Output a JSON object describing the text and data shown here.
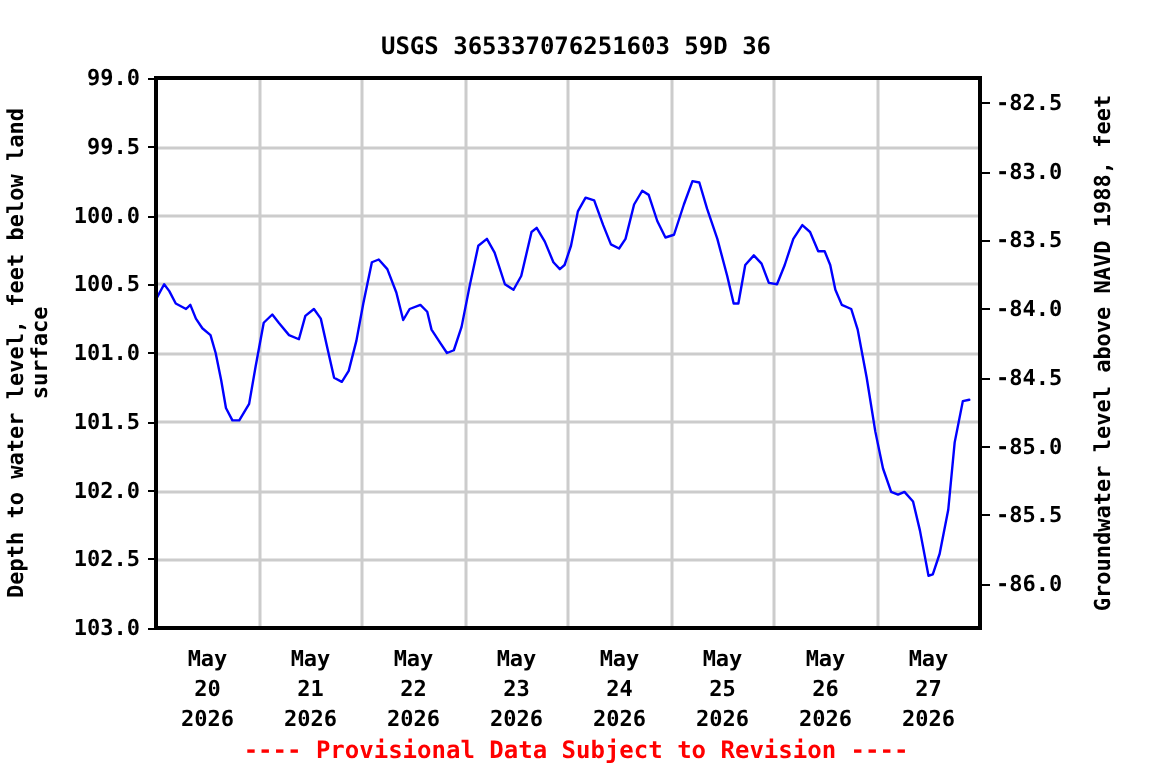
{
  "chart_data": {
    "type": "line",
    "title": "USGS 365337076251603 59D 36",
    "ylabel": "Depth to water level, feet below land\nsurface",
    "y2label": "Groundwater level above NAVD 1988, feet",
    "annotations": [
      "---- Provisional Data Subject to Revision ----"
    ],
    "xlim": [
      "2026-05-20T00:00",
      "2026-05-28T00:00"
    ],
    "xticks": [
      {
        "value": "2026-05-20T00:00",
        "label": null
      },
      {
        "value": "2026-05-20T12:00",
        "label": "May\n20\n2026"
      },
      {
        "value": "2026-05-21T00:00",
        "label": null
      },
      {
        "value": "2026-05-21T12:00",
        "label": "May\n21\n2026"
      },
      {
        "value": "2026-05-22T00:00",
        "label": null
      },
      {
        "value": "2026-05-22T12:00",
        "label": "May\n22\n2026"
      },
      {
        "value": "2026-05-23T00:00",
        "label": null
      },
      {
        "value": "2026-05-23T12:00",
        "label": "May\n23\n2026"
      },
      {
        "value": "2026-05-24T00:00",
        "label": null
      },
      {
        "value": "2026-05-24T12:00",
        "label": "May\n24\n2026"
      },
      {
        "value": "2026-05-25T00:00",
        "label": null
      },
      {
        "value": "2026-05-25T12:00",
        "label": "May\n25\n2026"
      },
      {
        "value": "2026-05-26T00:00",
        "label": null
      },
      {
        "value": "2026-05-26T12:00",
        "label": "May\n26\n2026"
      },
      {
        "value": "2026-05-27T00:00",
        "label": null
      },
      {
        "value": "2026-05-27T12:00",
        "label": "May\n27\n2026"
      },
      {
        "value": "2026-05-28T00:00",
        "label": null
      }
    ],
    "ylim": [
      103,
      99
    ],
    "yticks": [
      {
        "value": 99,
        "label": "99.0"
      },
      {
        "value": 99.5,
        "label": "99.5"
      },
      {
        "value": 100,
        "label": "100.0"
      },
      {
        "value": 100.5,
        "label": "100.5"
      },
      {
        "value": 101,
        "label": "101.0"
      },
      {
        "value": 101.5,
        "label": "101.5"
      },
      {
        "value": 102,
        "label": "102.0"
      },
      {
        "value": 102.5,
        "label": "102.5"
      },
      {
        "value": 103,
        "label": "103.0"
      }
    ],
    "y2lim": [
      -86.32,
      -82.32
    ],
    "y2ticks": [
      {
        "value": -82.5,
        "label": "-82.5"
      },
      {
        "value": -83,
        "label": "-83.0"
      },
      {
        "value": -83.5,
        "label": "-83.5"
      },
      {
        "value": -84,
        "label": "-84.0"
      },
      {
        "value": -84.5,
        "label": "-84.5"
      },
      {
        "value": -85,
        "label": "-85.0"
      },
      {
        "value": -85.5,
        "label": "-85.5"
      },
      {
        "value": -86,
        "label": "-86.0"
      }
    ],
    "grid": true,
    "marker": "none",
    "line_style": "solid",
    "series": [
      {
        "color": "#0000ff",
        "x": [
          "2026-05-20T00:00",
          "2026-05-20T01:54",
          "2026-05-20T03:06",
          "2026-05-20T04:36",
          "2026-05-20T07:00",
          "2026-05-20T08:00",
          "2026-05-20T09:18",
          "2026-05-20T10:48",
          "2026-05-20T12:42",
          "2026-05-20T13:54",
          "2026-05-20T15:12",
          "2026-05-20T16:18",
          "2026-05-20T17:48",
          "2026-05-20T19:24",
          "2026-05-20T21:42",
          "2026-05-20T23:12",
          "2026-05-21T01:06",
          "2026-05-21T03:06",
          "2026-05-21T04:36",
          "2026-05-21T07:00",
          "2026-05-21T09:18",
          "2026-05-21T10:48",
          "2026-05-21T12:48",
          "2026-05-21T14:24",
          "2026-05-21T15:54",
          "2026-05-21T17:30",
          "2026-05-21T19:18",
          "2026-05-21T20:54",
          "2026-05-21T22:42",
          "2026-05-22T00:18",
          "2026-05-22T02:18",
          "2026-05-22T03:54",
          "2026-05-22T05:54",
          "2026-05-22T08:00",
          "2026-05-22T09:36",
          "2026-05-22T11:06",
          "2026-05-22T13:36",
          "2026-05-22T15:12",
          "2026-05-22T16:12",
          "2026-05-22T18:18",
          "2026-05-22T19:48",
          "2026-05-22T21:24",
          "2026-05-22T23:12",
          "2026-05-23T01:06",
          "2026-05-23T03:06",
          "2026-05-23T05:06",
          "2026-05-23T06:54",
          "2026-05-23T09:18",
          "2026-05-23T11:18",
          "2026-05-23T13:06",
          "2026-05-23T15:30",
          "2026-05-23T16:42",
          "2026-05-23T18:36",
          "2026-05-23T20:36",
          "2026-05-23T22:06",
          "2026-05-23T23:12",
          "2026-05-24T00:42",
          "2026-05-24T02:18",
          "2026-05-24T04:06",
          "2026-05-24T06:06",
          "2026-05-24T08:12",
          "2026-05-24T10:00",
          "2026-05-24T11:54",
          "2026-05-24T13:24",
          "2026-05-24T15:24",
          "2026-05-24T17:18",
          "2026-05-24T18:48",
          "2026-05-24T20:48",
          "2026-05-24T22:42",
          "2026-05-25T00:42",
          "2026-05-25T03:00",
          "2026-05-25T05:00",
          "2026-05-25T06:36",
          "2026-05-25T08:24",
          "2026-05-25T10:48",
          "2026-05-25T13:06",
          "2026-05-25T14:36",
          "2026-05-25T15:42",
          "2026-05-25T17:18",
          "2026-05-25T19:18",
          "2026-05-25T21:06",
          "2026-05-25T22:48",
          "2026-05-26T00:42",
          "2026-05-26T02:30",
          "2026-05-26T04:30",
          "2026-05-26T06:36",
          "2026-05-26T08:24",
          "2026-05-26T10:18",
          "2026-05-26T11:48",
          "2026-05-26T13:06",
          "2026-05-26T14:18",
          "2026-05-26T15:48",
          "2026-05-26T18:00",
          "2026-05-26T19:30",
          "2026-05-26T21:36",
          "2026-05-26T23:36",
          "2026-05-27T01:24",
          "2026-05-27T03:18",
          "2026-05-27T04:54",
          "2026-05-27T06:24",
          "2026-05-27T08:24",
          "2026-05-27T10:00",
          "2026-05-27T12:00",
          "2026-05-27T13:00",
          "2026-05-27T14:36",
          "2026-05-27T16:36",
          "2026-05-27T18:06",
          "2026-05-27T20:00",
          "2026-05-27T21:30"
        ],
        "values": [
          100.61,
          100.5,
          100.55,
          100.64,
          100.68,
          100.65,
          100.75,
          100.82,
          100.87,
          101.0,
          101.2,
          101.4,
          101.49,
          101.49,
          101.37,
          101.1,
          100.78,
          100.72,
          100.78,
          100.87,
          100.9,
          100.73,
          100.68,
          100.75,
          100.96,
          101.18,
          101.21,
          101.13,
          100.91,
          100.64,
          100.34,
          100.32,
          100.39,
          100.56,
          100.76,
          100.68,
          100.65,
          100.7,
          100.83,
          100.93,
          101.0,
          100.98,
          100.81,
          100.51,
          100.22,
          100.17,
          100.27,
          100.5,
          100.54,
          100.44,
          100.12,
          100.09,
          100.19,
          100.34,
          100.39,
          100.36,
          100.22,
          99.97,
          99.87,
          99.89,
          100.07,
          100.21,
          100.24,
          100.17,
          99.92,
          99.82,
          99.85,
          100.04,
          100.16,
          100.14,
          99.92,
          99.75,
          99.76,
          99.95,
          100.17,
          100.44,
          100.64,
          100.64,
          100.36,
          100.29,
          100.35,
          100.49,
          100.5,
          100.36,
          100.17,
          100.07,
          100.12,
          100.26,
          100.26,
          100.36,
          100.54,
          100.65,
          100.68,
          100.83,
          101.18,
          101.57,
          101.84,
          102.01,
          102.03,
          102.01,
          102.08,
          102.29,
          102.62,
          102.61,
          102.46,
          102.14,
          101.65,
          101.35,
          101.34
        ]
      }
    ]
  }
}
